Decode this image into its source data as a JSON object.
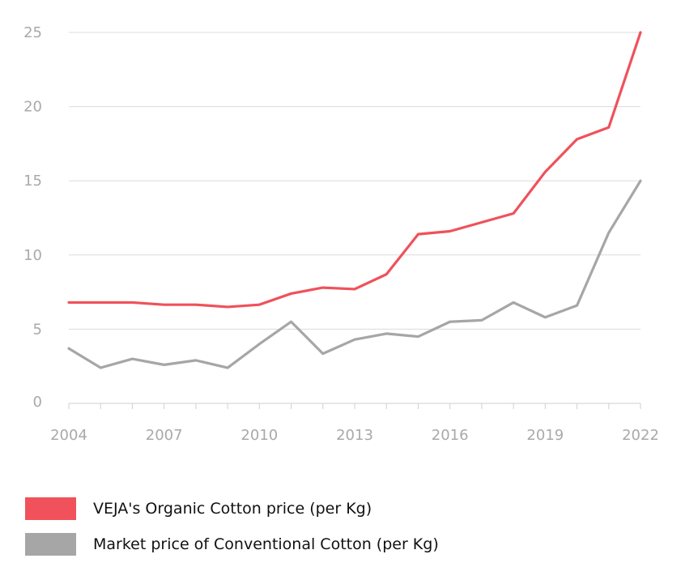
{
  "chart_data": {
    "type": "line",
    "title": "",
    "xlabel": "",
    "ylabel": "",
    "x": [
      2004,
      2005,
      2006,
      2007,
      2008,
      2009,
      2010,
      2011,
      2012,
      2013,
      2014,
      2015,
      2016,
      2017,
      2018,
      2019,
      2020,
      2021,
      2022
    ],
    "x_tick_labels": [
      "2004",
      "2007",
      "2010",
      "2013",
      "2016",
      "2019",
      "2022"
    ],
    "x_tick_values": [
      2004,
      2007,
      2010,
      2013,
      2016,
      2019,
      2022
    ],
    "y_tick_labels": [
      "0",
      "5",
      "10",
      "15",
      "20",
      "25"
    ],
    "y_tick_values": [
      0,
      5,
      10,
      15,
      20,
      25
    ],
    "ylim": [
      0,
      25
    ],
    "xlim": [
      2004,
      2022
    ],
    "grid": true,
    "legend_position": "bottom-left",
    "series": [
      {
        "name": "VEJA's Organic Cotton price (per Kg)",
        "color": "#f0515a",
        "values": [
          6.8,
          6.8,
          6.8,
          6.65,
          6.65,
          6.5,
          6.65,
          7.4,
          7.8,
          7.7,
          8.7,
          11.4,
          11.6,
          12.2,
          12.8,
          15.6,
          17.8,
          18.6,
          25.0
        ]
      },
      {
        "name": "Market price of Conventional Cotton (per Kg)",
        "color": "#a6a6a6",
        "values": [
          3.7,
          2.4,
          3.0,
          2.6,
          2.9,
          2.4,
          4.0,
          5.5,
          3.35,
          4.3,
          4.7,
          4.5,
          5.5,
          5.6,
          6.8,
          5.8,
          6.6,
          11.5,
          15.0
        ]
      }
    ]
  }
}
